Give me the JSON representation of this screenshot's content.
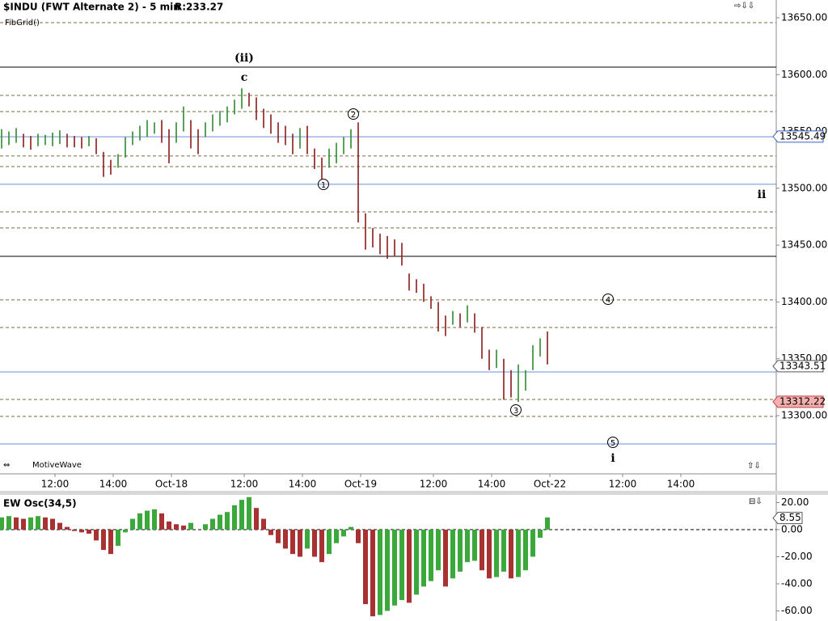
{
  "chart_data": [
    {
      "type": "ohlc",
      "title": "$INDU (FWT Alternate 2) - 5 min",
      "subtitle": "R:233.27",
      "study": "FibGrid()",
      "brand": "MotiveWave",
      "x": [
        0,
        3,
        6,
        9,
        12,
        15,
        18,
        21,
        24,
        27,
        30,
        33,
        36,
        39,
        42,
        45,
        48,
        51,
        54,
        57,
        60,
        63,
        66,
        69,
        72,
        75,
        78,
        81,
        84,
        87,
        90,
        93,
        96,
        99,
        102,
        105,
        108,
        111,
        114,
        117,
        120,
        123,
        126,
        129,
        132,
        135,
        138,
        141,
        144,
        147,
        150,
        153,
        156,
        159,
        162,
        165,
        168,
        171,
        174,
        177,
        180,
        183,
        186,
        189,
        192,
        195,
        198,
        201,
        204,
        207,
        210,
        213,
        216,
        219,
        222,
        225
      ],
      "high": [
        13552,
        13550,
        13553,
        13548,
        13546,
        13548,
        13547,
        13549,
        13551,
        13548,
        13546,
        13545,
        13546,
        13544,
        13532,
        13525,
        13530,
        13545,
        13550,
        13555,
        13560,
        13558,
        13560,
        13552,
        13558,
        13572,
        13560,
        13552,
        13558,
        13565,
        13568,
        13572,
        13578,
        13588,
        13584,
        13580,
        13570,
        13565,
        13558,
        13555,
        13548,
        13553,
        13555,
        13535,
        13527,
        13535,
        13540,
        13545,
        13552,
        13558,
        13478,
        13465,
        13460,
        13458,
        13455,
        13452,
        13425,
        13420,
        13416,
        13405,
        13400,
        13388,
        13392,
        13390,
        13397,
        13390,
        13378,
        13358,
        13358,
        13350,
        13340,
        13345,
        13340,
        13362,
        13368,
        13374
      ],
      "low": [
        13535,
        13538,
        13540,
        13536,
        13534,
        13537,
        13538,
        13537,
        13539,
        13536,
        13536,
        13535,
        13537,
        13530,
        13510,
        13512,
        13518,
        13527,
        13538,
        13542,
        13545,
        13548,
        13540,
        13522,
        13540,
        13550,
        13535,
        13530,
        13545,
        13550,
        13555,
        13558,
        13565,
        13570,
        13572,
        13560,
        13553,
        13548,
        13540,
        13538,
        13530,
        13535,
        13530,
        13517,
        13508,
        13518,
        13522,
        13530,
        13535,
        13470,
        13446,
        13448,
        13442,
        13438,
        13440,
        13432,
        13410,
        13408,
        13400,
        13394,
        13374,
        13370,
        13380,
        13378,
        13382,
        13373,
        13350,
        13340,
        13342,
        13314,
        13316,
        13312,
        13322,
        13340,
        13352,
        13345
      ],
      "up_color": "#2e8b2e",
      "down_color": "#8b1a1a",
      "xlim": [
        0,
        320
      ],
      "xticks": [
        {
          "value": 22,
          "label": "12:00"
        },
        {
          "value": 46,
          "label": "14:00"
        },
        {
          "value": 70,
          "label": "Oct-18"
        },
        {
          "value": 100,
          "label": "12:00"
        },
        {
          "value": 124,
          "label": "14:00"
        },
        {
          "value": 148,
          "label": "Oct-19"
        },
        {
          "value": 178,
          "label": "12:00"
        },
        {
          "value": 202,
          "label": "14:00"
        },
        {
          "value": 226,
          "label": "Oct-22"
        },
        {
          "value": 256,
          "label": "12:00"
        },
        {
          "value": 280,
          "label": "14:00"
        }
      ],
      "ylim": [
        13249.49,
        13665.65
      ],
      "yticks": [
        {
          "value": 13300,
          "label": "13300.00"
        },
        {
          "value": 13350,
          "label": "13350.00"
        },
        {
          "value": 13400,
          "label": "13400.00"
        },
        {
          "value": 13450,
          "label": "13450.00"
        },
        {
          "value": 13500,
          "label": "13500.00"
        },
        {
          "value": 13550,
          "label": "13550.00"
        },
        {
          "value": 13600,
          "label": "13600.00"
        },
        {
          "value": 13650,
          "label": "13650.00"
        }
      ],
      "fib_levels": [
        13645.7,
        13581.7,
        13567.5,
        13528.4,
        13519.1,
        13479.3,
        13465.1,
        13401.8,
        13377.5,
        13314.2,
        13299.3
      ],
      "fib_color": "#7a6a3a",
      "wave_levels": [
        13606.6,
        13440.1
      ],
      "wave_color": "#000000",
      "channel_levels": [
        13545.3,
        13503.5,
        13338.4,
        13275.1
      ],
      "channel_color": "#6a8fd8",
      "price_markers": [
        {
          "value": 13545.49,
          "color": "#3a62c8",
          "fill": "#ffffff"
        },
        {
          "value": 13343.51,
          "color": "#555555",
          "fill": "#ffffff"
        },
        {
          "value": 13312.22,
          "color": "#c84040",
          "fill": "#f2b0b0"
        }
      ],
      "annotations": [
        "(ii)",
        "c",
        "1",
        "2",
        "3",
        "4",
        "5",
        "ii",
        "i"
      ]
    },
    {
      "type": "bar",
      "title": "EW Osc(34,5)",
      "x": [
        0,
        3,
        6,
        9,
        12,
        15,
        18,
        21,
        24,
        27,
        30,
        33,
        36,
        39,
        42,
        45,
        48,
        51,
        54,
        57,
        60,
        63,
        66,
        69,
        72,
        75,
        78,
        81,
        84,
        87,
        90,
        93,
        96,
        99,
        102,
        105,
        108,
        111,
        114,
        117,
        120,
        123,
        126,
        129,
        132,
        135,
        138,
        141,
        144,
        147,
        150,
        153,
        156,
        159,
        162,
        165,
        168,
        171,
        174,
        177,
        180,
        183,
        186,
        189,
        192,
        195,
        198,
        201,
        204,
        207,
        210,
        213,
        216,
        219,
        222,
        225
      ],
      "values": [
        9,
        10,
        9,
        8,
        9,
        10,
        9,
        8,
        5,
        2,
        -1,
        -2,
        -3,
        -8,
        -15,
        -18,
        -12,
        -2,
        8,
        12,
        14,
        15,
        12,
        6,
        4,
        3,
        5,
        0,
        4,
        8,
        11,
        13,
        18,
        22,
        24,
        16,
        8,
        -4,
        -10,
        -14,
        -18,
        -20,
        -14,
        -20,
        -24,
        -18,
        -10,
        -5,
        2,
        -10,
        -55,
        -64,
        -63,
        -60,
        -56,
        -52,
        -54,
        -48,
        -42,
        -38,
        -30,
        -42,
        -36,
        -31,
        -24,
        -23,
        -30,
        -36,
        -35,
        -31,
        -36,
        -35,
        -30,
        -20,
        -6,
        9
      ],
      "up_color": "#3aa83a",
      "down_color": "#a83232",
      "xlim": [
        0,
        320
      ],
      "ylim": [
        -67.46,
        25.67
      ],
      "yticks": [
        {
          "value": 20,
          "label": "20.00"
        },
        {
          "value": 0,
          "label": "0.00"
        },
        {
          "value": -20,
          "label": "-20.00"
        },
        {
          "value": -40,
          "label": "-40.00"
        },
        {
          "value": -60,
          "label": "-60.00"
        }
      ],
      "marker": 8.55
    }
  ]
}
